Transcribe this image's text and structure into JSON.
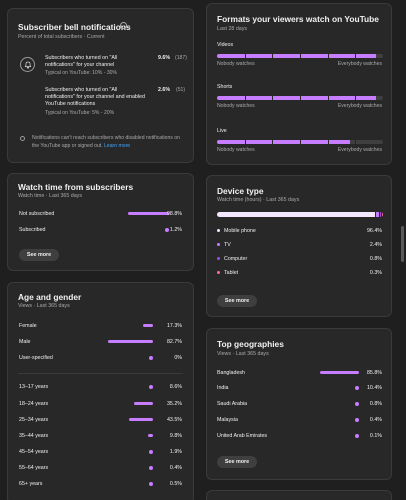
{
  "bell": {
    "title": "Subscriber bell notifications",
    "subtitle": "Percent of total subscribers · Current",
    "row1": {
      "line1": "Subscribers who turned on \"All",
      "line2": "notifications\" for your channel",
      "typical": "Typical on YouTube: 10% - 30%",
      "value": "9.6%",
      "count": "(187)"
    },
    "row2": {
      "line1": "Subscribers who turned on \"All",
      "line2": "notifications\" for your channel and enabled",
      "line3": "YouTube notifications",
      "typical": "Typical on YouTube: 5% - 20%",
      "value": "2.6%",
      "count": "(51)"
    },
    "note": {
      "line1": "Notifications can't reach subscribers who disabled notifications on",
      "line2_prefix": "the YouTube app or signed out.",
      "link": "Learn more"
    }
  },
  "formats": {
    "title": "Formats your viewers watch on YouTube",
    "subtitle": "Last 28 days",
    "rows": [
      {
        "label": "Videos",
        "level": 0.96,
        "left": "Nobody watches",
        "right": "Everybody watches"
      },
      {
        "label": "Shorts",
        "level": 0.96,
        "left": "Nobody watches",
        "right": "Everybody watches"
      },
      {
        "label": "Live",
        "level": 0.8,
        "left": "Nobody watches",
        "right": "Everybody watches"
      }
    ]
  },
  "watch": {
    "title": "Watch time from subscribers",
    "subtitle": "Watch time · Last 365 days",
    "rows": [
      {
        "label": "Not subscribed",
        "value": "98.8%",
        "pct": 98.8
      },
      {
        "label": "Subscribed",
        "value": "1.2%",
        "pct": 1.2
      }
    ],
    "button": "See more"
  },
  "device": {
    "title": "Device type",
    "subtitle": "Watch time (hours) · Last 365 days",
    "rows": [
      {
        "label": "Mobile phone",
        "value": "96.4%",
        "pct": 96.4,
        "color": "#f3e8ff"
      },
      {
        "label": "TV",
        "value": "2.4%",
        "pct": 2.4,
        "color": "#c77dff"
      },
      {
        "label": "Computer",
        "value": "0.8%",
        "pct": 0.8,
        "color": "#9d4edd"
      },
      {
        "label": "Tablet",
        "value": "0.3%",
        "pct": 0.3,
        "color": "#ff6b9a"
      }
    ],
    "button": "See more"
  },
  "age": {
    "title": "Age and gender",
    "subtitle": "Views · Last 365 days",
    "gender": [
      {
        "label": "Female",
        "value": "17.3%",
        "pct": 17.3
      },
      {
        "label": "Male",
        "value": "82.7%",
        "pct": 82.7
      },
      {
        "label": "User-specified",
        "value": "0%",
        "pct": 0
      }
    ],
    "ages": [
      {
        "label": "13–17 years",
        "value": "8.6%",
        "pct": 8.6
      },
      {
        "label": "18–24 years",
        "value": "35.2%",
        "pct": 35.2
      },
      {
        "label": "25–34 years",
        "value": "43.5%",
        "pct": 43.5
      },
      {
        "label": "35–44 years",
        "value": "9.8%",
        "pct": 9.8
      },
      {
        "label": "45–54 years",
        "value": "1.9%",
        "pct": 1.9
      },
      {
        "label": "55–64 years",
        "value": "0.4%",
        "pct": 0.4
      },
      {
        "label": "65+ years",
        "value": "0.5%",
        "pct": 0.5
      }
    ]
  },
  "geo": {
    "title": "Top geographies",
    "subtitle": "Views · Last 365 days",
    "rows": [
      {
        "label": "Bangladesh",
        "value": "85.8%",
        "pct": 85.8
      },
      {
        "label": "India",
        "value": "10.4%",
        "pct": 10.4
      },
      {
        "label": "Saudi Arabia",
        "value": "0.8%",
        "pct": 0.8
      },
      {
        "label": "Malaysia",
        "value": "0.4%",
        "pct": 0.4
      },
      {
        "label": "United Arab Emirates",
        "value": "0.1%",
        "pct": 0.1
      }
    ],
    "button": "See more"
  }
}
